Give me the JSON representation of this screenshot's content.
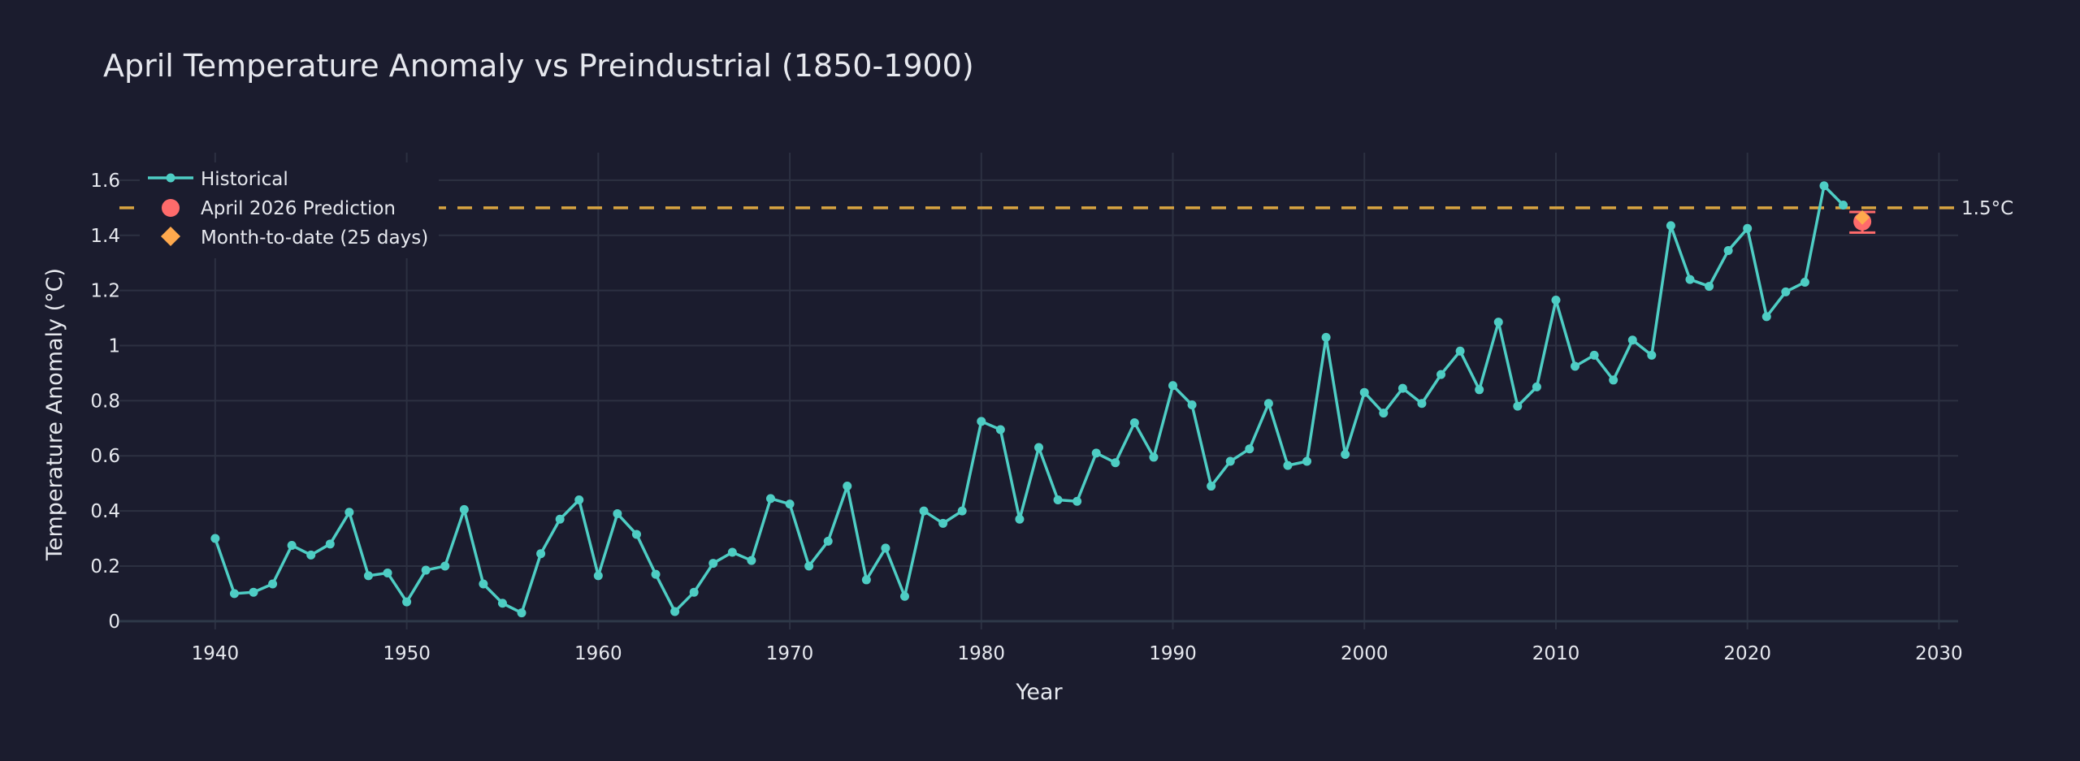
{
  "chart_data": {
    "type": "line",
    "title": "April Temperature Anomaly vs Preindustrial (1850-1900)",
    "xlabel": "Year",
    "ylabel": "Temperature Anomaly (°C)",
    "xlim": [
      1935,
      2031
    ],
    "ylim": [
      -0.03,
      1.7
    ],
    "x_ticks": [
      1940,
      1950,
      1960,
      1970,
      1980,
      1990,
      2000,
      2010,
      2020,
      2030
    ],
    "y_ticks": [
      0,
      0.2,
      0.4,
      0.6,
      0.8,
      1,
      1.2,
      1.4,
      1.6
    ],
    "y_tick_labels": [
      "0",
      "0.2",
      "0.4",
      "0.6",
      "0.8",
      "1",
      "1.2",
      "1.4",
      "1.6"
    ],
    "grid": true,
    "legend_position": "top-left",
    "colors": {
      "background": "#1b1c2e",
      "historical": "#4ecdc4",
      "prediction": "#ff6b6b",
      "month_to_date": "#ffa94d",
      "threshold": "#d9a441"
    },
    "series": [
      {
        "name": "Historical",
        "marker": "circle",
        "x": [
          1940,
          1941,
          1942,
          1943,
          1944,
          1945,
          1946,
          1947,
          1948,
          1949,
          1950,
          1951,
          1952,
          1953,
          1954,
          1955,
          1956,
          1957,
          1958,
          1959,
          1960,
          1961,
          1962,
          1963,
          1964,
          1965,
          1966,
          1967,
          1968,
          1969,
          1970,
          1971,
          1972,
          1973,
          1974,
          1975,
          1976,
          1977,
          1978,
          1979,
          1980,
          1981,
          1982,
          1983,
          1984,
          1985,
          1986,
          1987,
          1988,
          1989,
          1990,
          1991,
          1992,
          1993,
          1994,
          1995,
          1996,
          1997,
          1998,
          1999,
          2000,
          2001,
          2002,
          2003,
          2004,
          2005,
          2006,
          2007,
          2008,
          2009,
          2010,
          2011,
          2012,
          2013,
          2014,
          2015,
          2016,
          2017,
          2018,
          2019,
          2020,
          2021,
          2022,
          2023,
          2024,
          2025
        ],
        "values": [
          0.3,
          0.1,
          0.105,
          0.135,
          0.275,
          0.24,
          0.28,
          0.395,
          0.165,
          0.175,
          0.07,
          0.185,
          0.2,
          0.405,
          0.135,
          0.065,
          0.03,
          0.245,
          0.37,
          0.44,
          0.165,
          0.39,
          0.315,
          0.17,
          0.035,
          0.105,
          0.21,
          0.25,
          0.22,
          0.445,
          0.425,
          0.2,
          0.29,
          0.49,
          0.15,
          0.265,
          0.09,
          0.4,
          0.355,
          0.4,
          0.725,
          0.695,
          0.37,
          0.63,
          0.44,
          0.435,
          0.61,
          0.575,
          0.72,
          0.595,
          0.855,
          0.785,
          0.49,
          0.58,
          0.625,
          0.79,
          0.565,
          0.58,
          1.03,
          0.605,
          0.83,
          0.755,
          0.845,
          0.79,
          0.895,
          0.98,
          0.84,
          1.085,
          0.78,
          0.85,
          1.165,
          0.925,
          0.965,
          0.875,
          1.02,
          0.965,
          1.435,
          1.24,
          1.215,
          1.345,
          1.425,
          1.105,
          1.195,
          1.23,
          1.58,
          1.51
        ]
      },
      {
        "name": "April 2026 Prediction",
        "marker": "circle",
        "x": [
          2026
        ],
        "values": [
          1.45
        ],
        "error_low": 1.41,
        "error_high": 1.485
      },
      {
        "name": "Month-to-date (25 days)",
        "marker": "diamond",
        "x": [
          2026
        ],
        "values": [
          1.465
        ]
      }
    ],
    "reference_line": {
      "y": 1.5,
      "label": "1.5°C",
      "style": "dashed"
    }
  }
}
